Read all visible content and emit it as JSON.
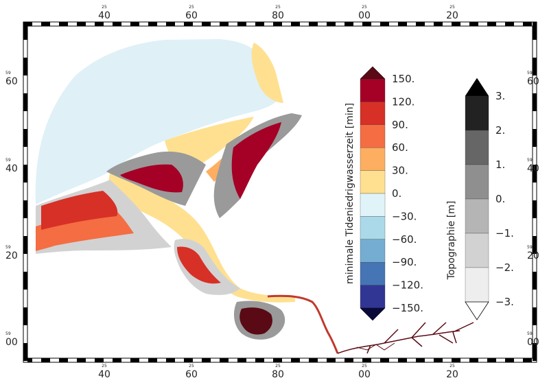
{
  "frame": {
    "top_ticks": [
      {
        "big": "40",
        "small": "25"
      },
      {
        "big": "60",
        "small": "25"
      },
      {
        "big": "80",
        "small": "25"
      },
      {
        "big": "00",
        "small": "25"
      },
      {
        "big": "20",
        "small": "25"
      }
    ],
    "bottom_ticks": [
      {
        "big": "40",
        "small": "25"
      },
      {
        "big": "60",
        "small": "25"
      },
      {
        "big": "80",
        "small": "25"
      },
      {
        "big": "00",
        "small": "25"
      },
      {
        "big": "20",
        "small": "25"
      }
    ],
    "left_ticks": [
      {
        "big": "60",
        "small": "59"
      },
      {
        "big": "40",
        "small": "59"
      },
      {
        "big": "20",
        "small": "59"
      },
      {
        "big": "00",
        "small": "59"
      }
    ],
    "right_ticks": [
      {
        "big": "60",
        "small": "59"
      },
      {
        "big": "40",
        "small": "59"
      },
      {
        "big": "20",
        "small": "59"
      },
      {
        "big": "00",
        "small": "59"
      }
    ]
  },
  "legend_time": {
    "title": "minimale Tideniedrigwasserzeit [min]",
    "labels": [
      "150.",
      "120.",
      "90.",
      "60.",
      "30.",
      "0.",
      "−30.",
      "−60.",
      "−90.",
      "−120.",
      "−150."
    ],
    "colors": [
      "#a50026",
      "#d73027",
      "#f46d43",
      "#fdae61",
      "#fee090",
      "#e0f3f8",
      "#abd9e9",
      "#74add1",
      "#4575b4",
      "#313695"
    ],
    "over_color": "#5a0a14",
    "under_color": "#0a0a3a"
  },
  "legend_topo": {
    "title": "Topographie [m]",
    "labels": [
      "3.",
      "2.",
      "1.",
      "0.",
      "−1.",
      "−2.",
      "−3."
    ],
    "colors": [
      "#222222",
      "#666666",
      "#8f8f8f",
      "#b5b5b5",
      "#d2d2d2",
      "#eeeeee"
    ],
    "over_color": "#000000",
    "under_color": "#ffffff"
  },
  "map_colors": {
    "sea": "#dff0f7",
    "positive_low": "#fee090",
    "positive_mid": "#fdae61",
    "positive_high": "#f46d43",
    "positive_max": "#d73027",
    "extreme": "#a50026",
    "dark_red": "#5a0a14",
    "land_light": "#d2d2d2",
    "land_mid": "#9a9a9a",
    "land_dark": "#555555",
    "river": "#c0392b",
    "river_dark": "#5a0a14"
  }
}
